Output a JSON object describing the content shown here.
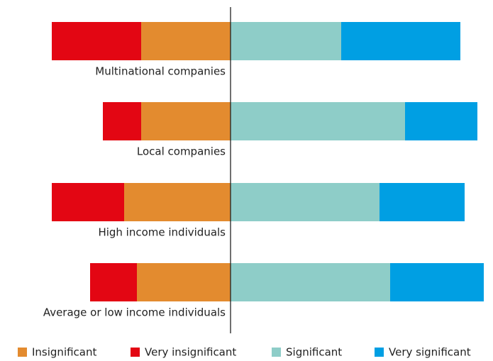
{
  "chart_data": {
    "type": "diverging_bar",
    "categories": [
      "Multinational companies",
      "Local companies",
      "High income individuals",
      "Average or low income individuals"
    ],
    "series": [
      {
        "name": "Insignificant",
        "color": "#e38b2f",
        "values": [
          -21,
          -21,
          -25,
          -22
        ]
      },
      {
        "name": "Very insignificant",
        "color": "#e30613",
        "values": [
          -21,
          -9,
          -17,
          -11
        ]
      },
      {
        "name": "Significant",
        "color": "#8ecdc8",
        "values": [
          26,
          41,
          35,
          37.5
        ]
      },
      {
        "name": "Very significant",
        "color": "#009fe3",
        "values": [
          28,
          17,
          20,
          22
        ]
      }
    ],
    "xlim": [
      -45,
      60
    ]
  }
}
